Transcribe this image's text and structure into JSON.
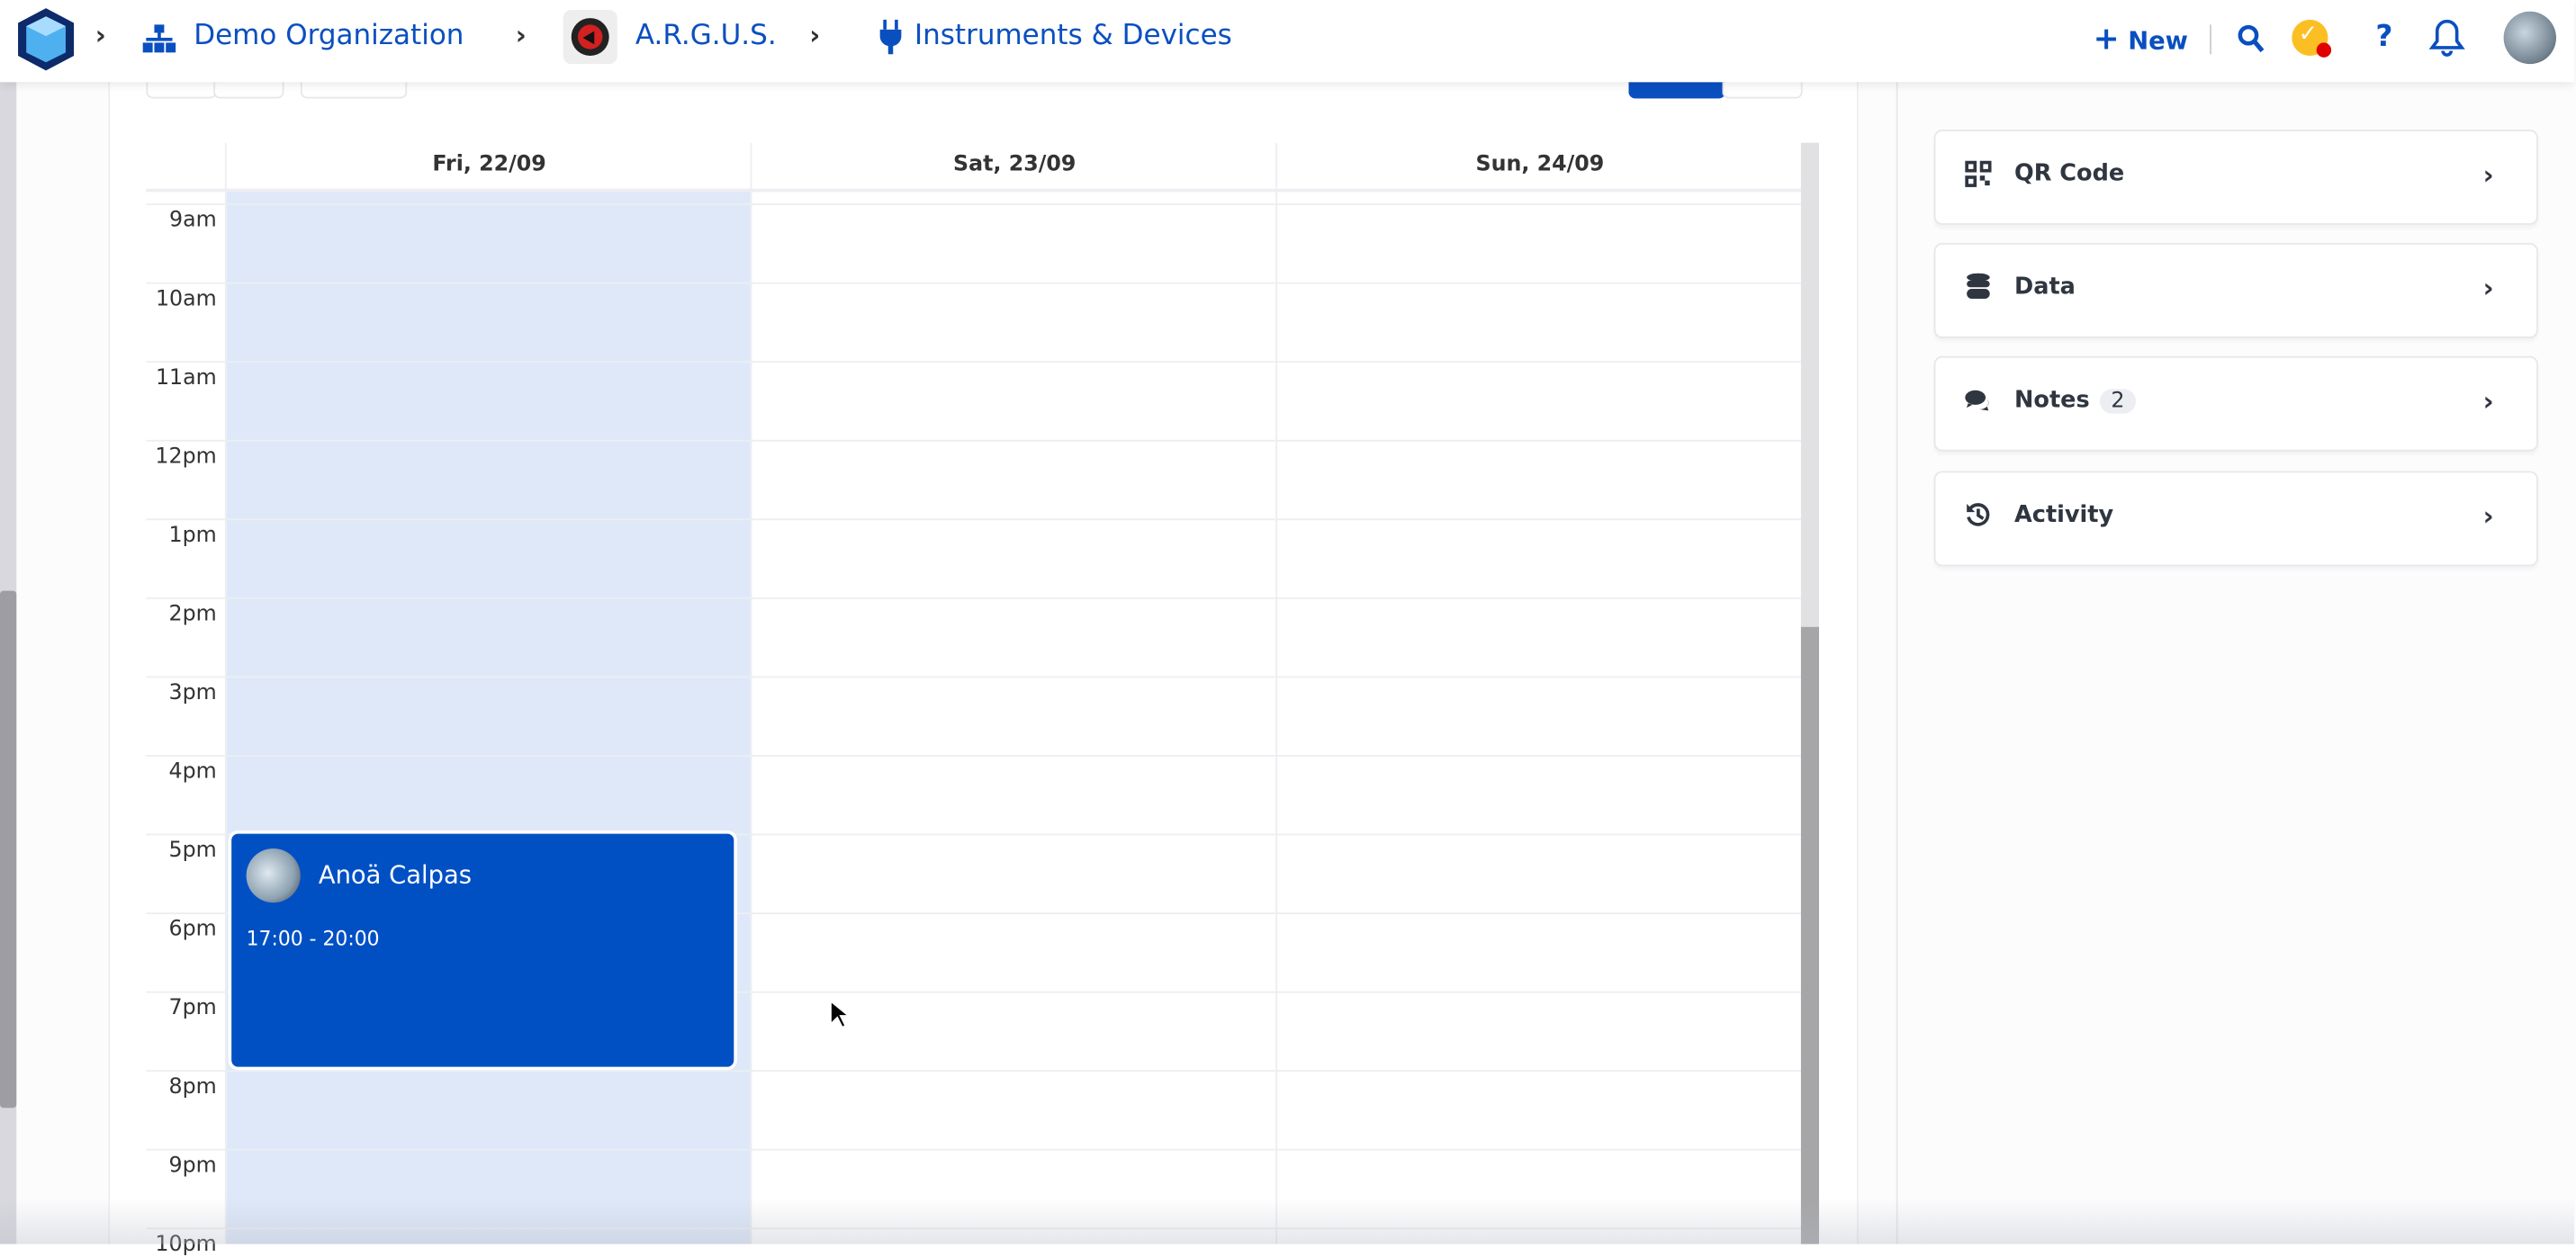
{
  "header": {
    "breadcrumbs": [
      {
        "label": "Demo Organization",
        "icon": "sitemap-icon"
      },
      {
        "label": "A.R.G.U.S.",
        "icon": "argus-logo"
      },
      {
        "label": "Instruments & Devices",
        "icon": "plug-icon"
      }
    ],
    "new_label": "New",
    "colors": {
      "accent": "#0a4fc0",
      "task_badge": "#fbbf24",
      "alert_dot": "#e00000"
    }
  },
  "calendar": {
    "days": [
      "Fri, 22/09",
      "Sat, 23/09",
      "Sun, 24/09"
    ],
    "hours": [
      "9am",
      "10am",
      "11am",
      "12pm",
      "1pm",
      "2pm",
      "3pm",
      "4pm",
      "5pm",
      "6pm",
      "7pm",
      "8pm",
      "9pm",
      "10pm"
    ],
    "event": {
      "name": "Anoä Calpas",
      "time": "17:00 - 20:00",
      "color": "#0050c4"
    }
  },
  "side_panel": {
    "items": [
      {
        "label": "QR Code",
        "icon": "qr-code-icon"
      },
      {
        "label": "Data",
        "icon": "database-icon"
      },
      {
        "label": "Notes",
        "icon": "comments-icon",
        "count": "2"
      },
      {
        "label": "Activity",
        "icon": "history-icon"
      }
    ]
  }
}
